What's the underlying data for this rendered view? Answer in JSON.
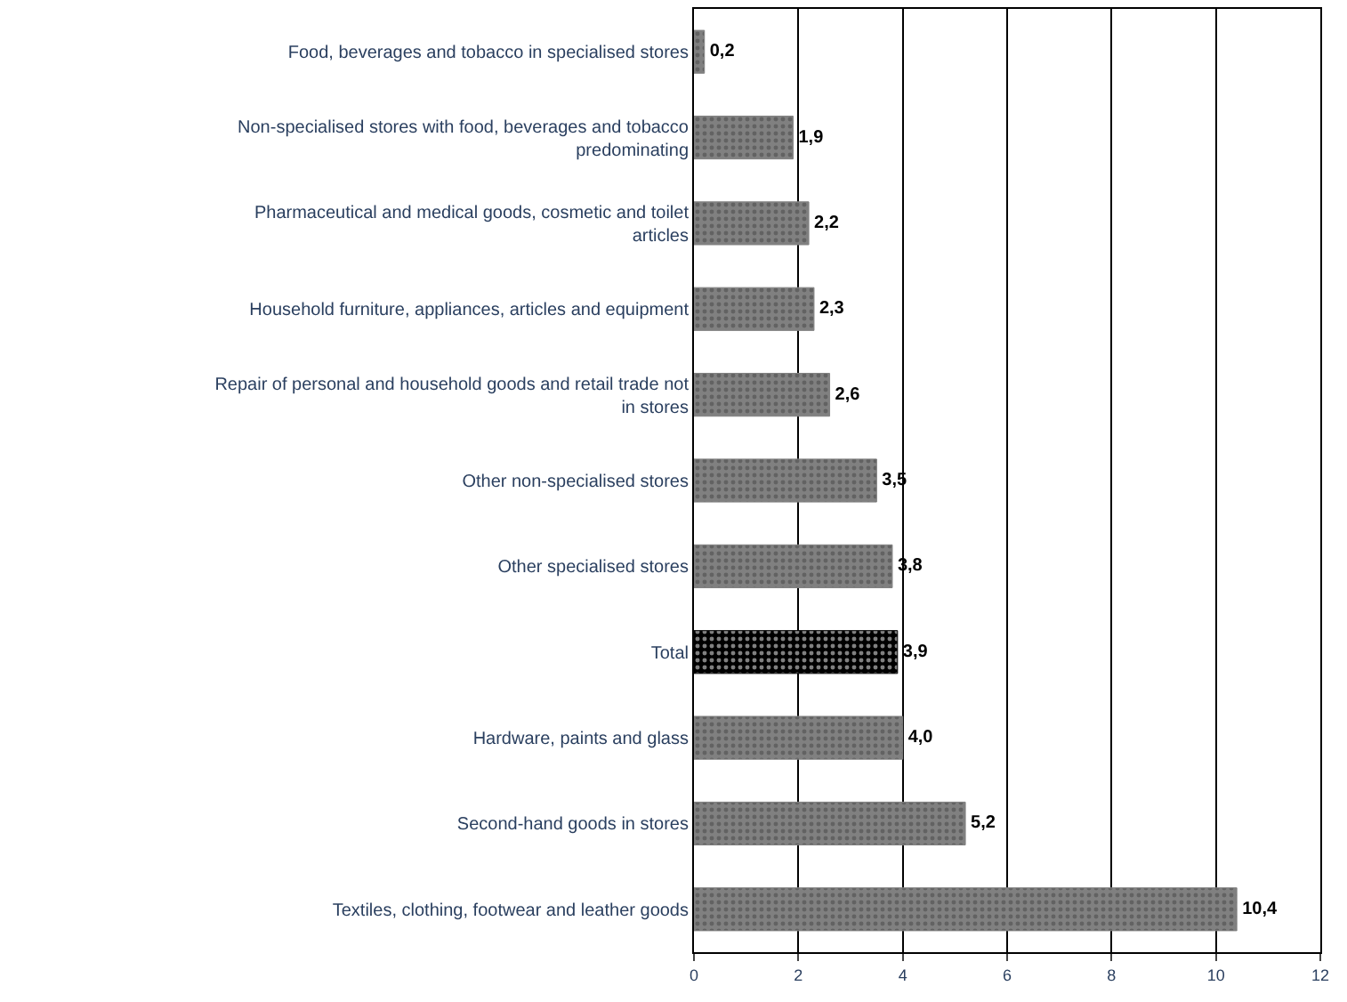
{
  "chart_data": {
    "type": "bar",
    "orientation": "horizontal",
    "categories": [
      "Food, beverages and tobacco in specialised stores",
      "Non-specialised stores with food, beverages and tobacco predominating",
      "Pharmaceutical and medical goods, cosmetic and toilet articles",
      "Household furniture, appliances, articles and equipment",
      "Repair of personal and household goods and retail trade not in stores",
      "Other non-specialised stores",
      "Other specialised stores",
      "Total",
      "Hardware, paints and glass",
      "Second-hand goods in stores",
      "Textiles, clothing, footwear and leather goods"
    ],
    "values": [
      0.2,
      1.9,
      2.2,
      2.3,
      2.6,
      3.5,
      3.8,
      3.9,
      4.0,
      5.2,
      10.4
    ],
    "value_labels": [
      "0,2",
      "1,9",
      "2,2",
      "2,3",
      "2,6",
      "3,5",
      "3,8",
      "3,9",
      "4,0",
      "5,2",
      "10,4"
    ],
    "colors": [
      "#808080",
      "#808080",
      "#808080",
      "#808080",
      "#808080",
      "#808080",
      "#808080",
      "#000000",
      "#808080",
      "#808080",
      "#808080"
    ],
    "xlim": [
      0,
      12
    ],
    "xticks": [
      0,
      2,
      4,
      6,
      8,
      10,
      12
    ],
    "grid": "x",
    "legend": false
  }
}
